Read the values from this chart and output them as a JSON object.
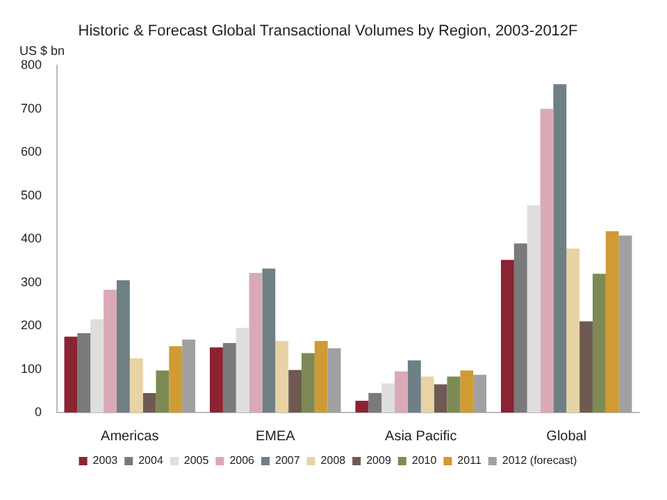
{
  "chart_data": {
    "type": "bar",
    "title": "Historic & Forecast Global Transactional Volumes by Region, 2003-2012F",
    "ylabel": "US $ bn",
    "categories": [
      "Americas",
      "EMEA",
      "Asia Pacific",
      "Global"
    ],
    "series": [
      {
        "name": "2003",
        "color": "#8b2332",
        "values": [
          175,
          150,
          27,
          352
        ]
      },
      {
        "name": "2004",
        "color": "#7a7a7a",
        "values": [
          183,
          160,
          45,
          390
        ]
      },
      {
        "name": "2005",
        "color": "#dedede",
        "values": [
          215,
          195,
          67,
          478
        ]
      },
      {
        "name": "2006",
        "color": "#d9aab5",
        "values": [
          283,
          322,
          95,
          700
        ]
      },
      {
        "name": "2007",
        "color": "#6e7f86",
        "values": [
          305,
          332,
          120,
          757
        ]
      },
      {
        "name": "2008",
        "color": "#e8d3a5",
        "values": [
          125,
          165,
          83,
          378
        ]
      },
      {
        "name": "2009",
        "color": "#6f5a52",
        "values": [
          45,
          98,
          65,
          210
        ]
      },
      {
        "name": "2010",
        "color": "#7d8a55",
        "values": [
          97,
          137,
          83,
          320
        ]
      },
      {
        "name": "2011",
        "color": "#d09a35",
        "values": [
          153,
          165,
          97,
          418
        ]
      },
      {
        "name": "2012 (forecast)",
        "color": "#a0a0a0",
        "values": [
          168,
          148,
          87,
          408
        ]
      }
    ],
    "ylim": [
      0,
      800
    ],
    "yticks": [
      0,
      100,
      200,
      300,
      400,
      500,
      600,
      700,
      800
    ],
    "grid": false,
    "legend": "bottom"
  }
}
